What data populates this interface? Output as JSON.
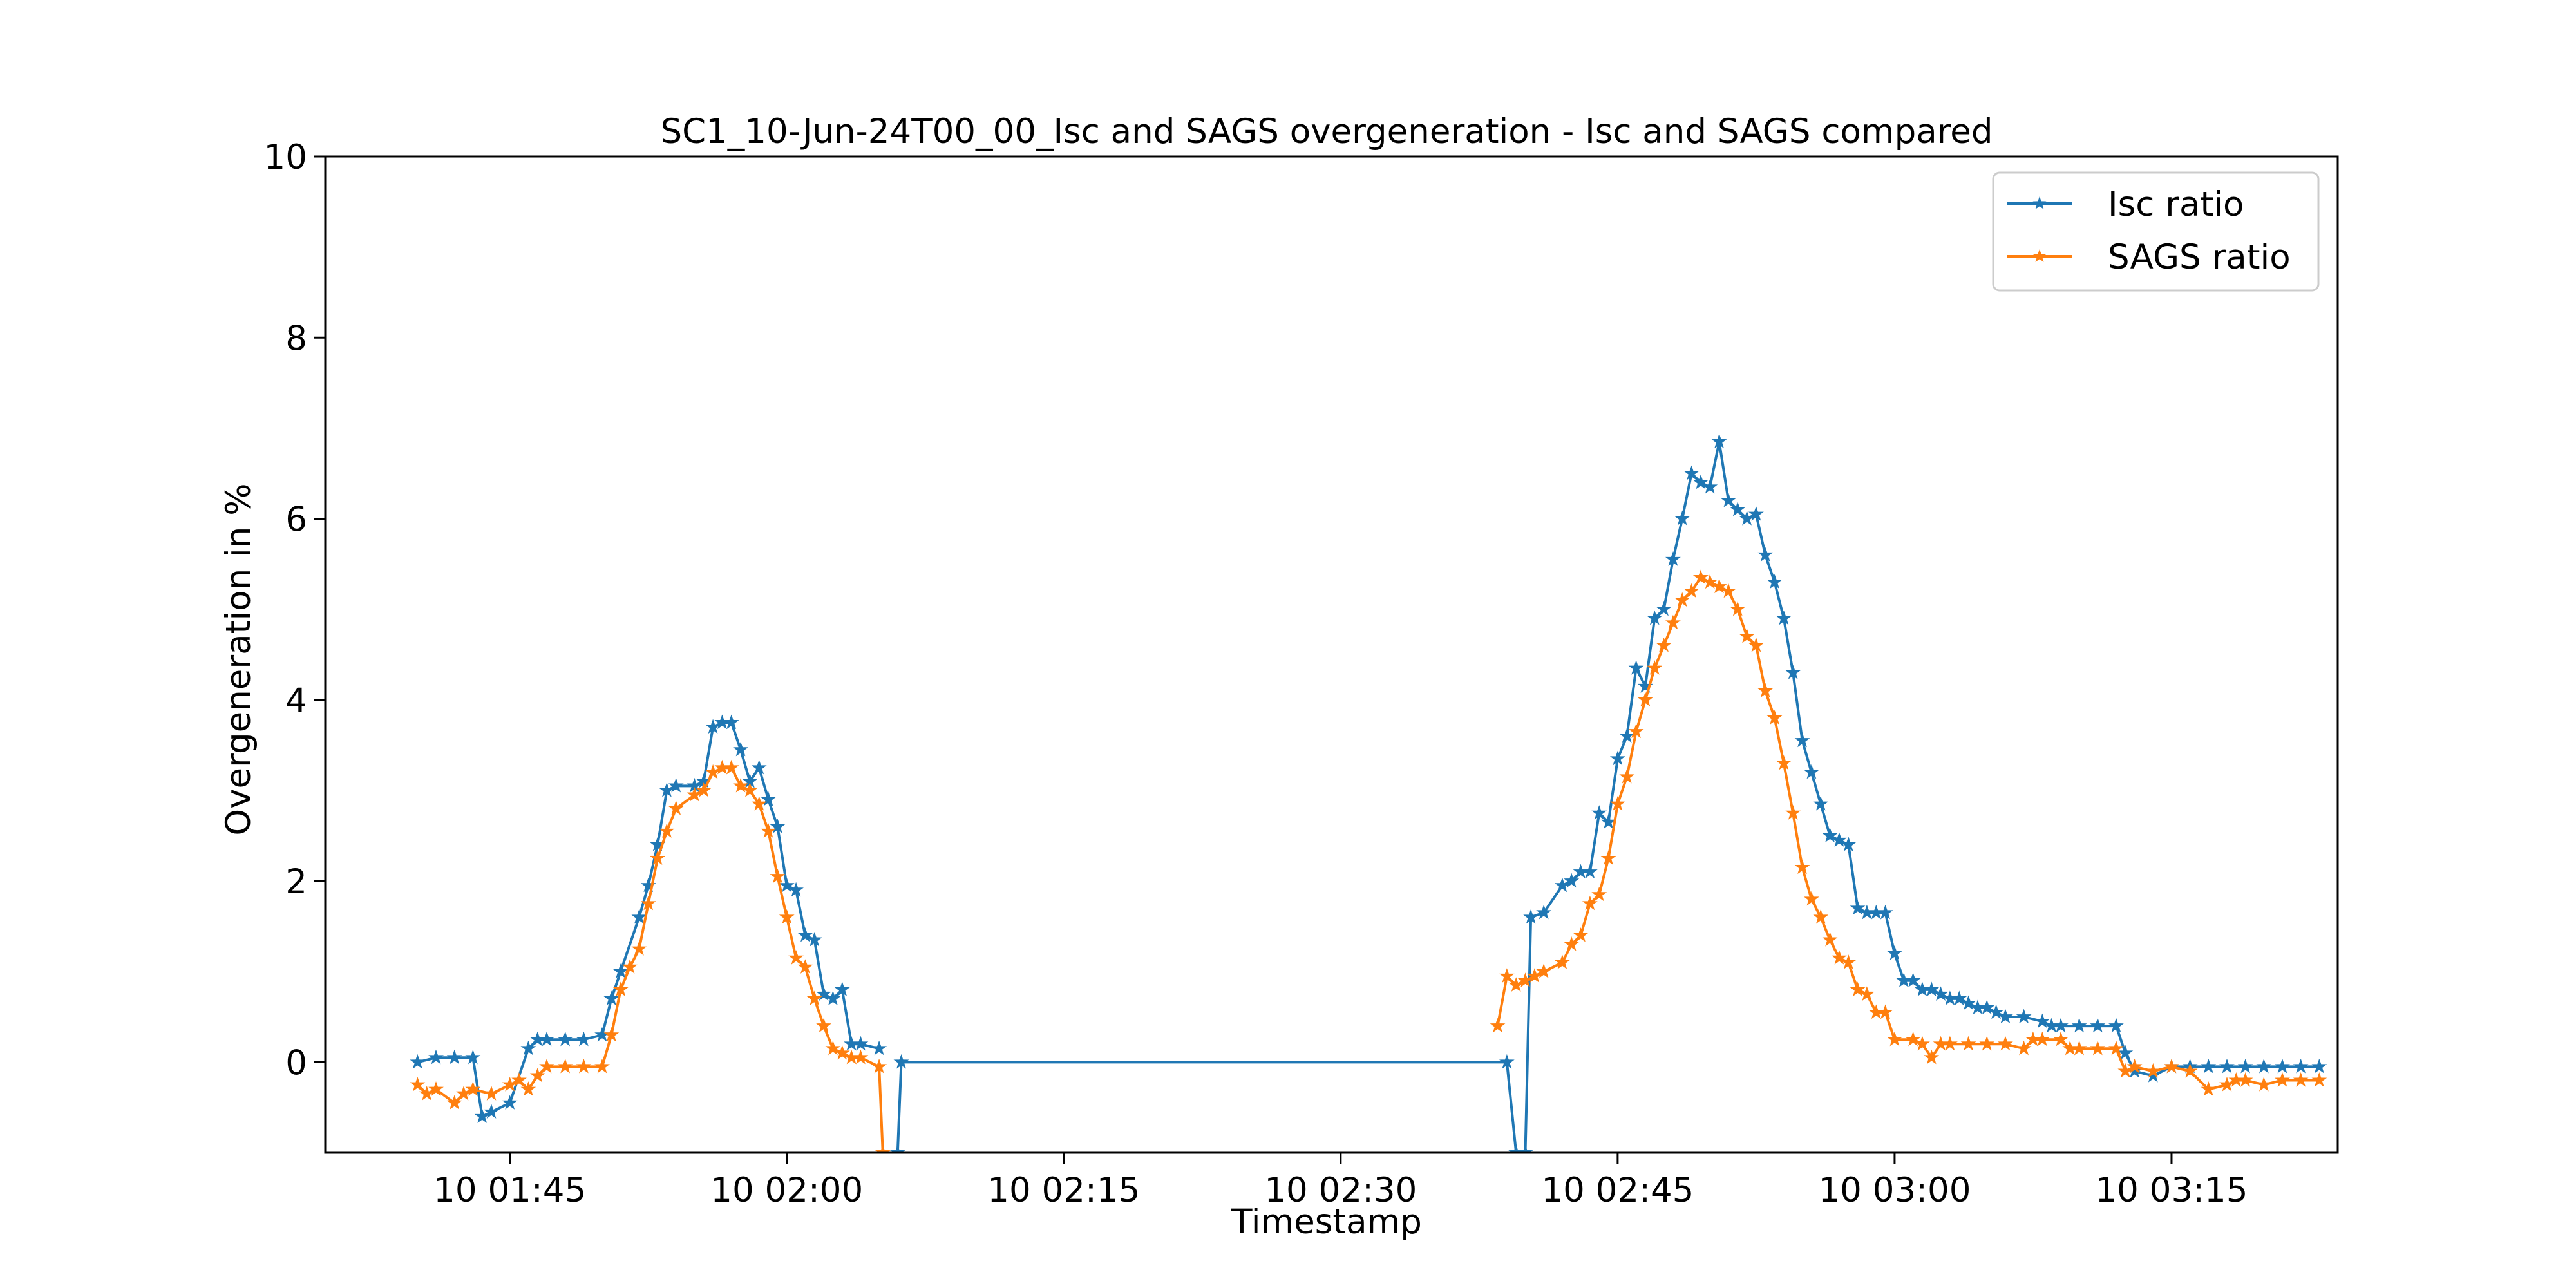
{
  "chart_data": {
    "type": "line",
    "title": "SC1_10-Jun-24T00_00_Isc and SAGS overgeneration - Isc and SAGS compared",
    "xlabel": "Timestamp",
    "ylabel": "Overgeneration in %",
    "xlim": [
      "10 01:35",
      "10 03:24"
    ],
    "ylim": [
      -1,
      10
    ],
    "x_ticks": [
      "10 01:45",
      "10 02:00",
      "10 02:15",
      "10 02:30",
      "10 02:45",
      "10 03:00",
      "10 03:15"
    ],
    "y_ticks": [
      0,
      2,
      4,
      6,
      8,
      10
    ],
    "legend_position": "top-right",
    "grid": false,
    "marker": "star",
    "series": [
      {
        "name": "Isc ratio",
        "color": "#1f77b4",
        "points": [
          [
            "10 01:40",
            0.0
          ],
          [
            "10 01:41",
            0.05
          ],
          [
            "10 01:42",
            0.05
          ],
          [
            "10 01:43",
            0.05
          ],
          [
            "10 01:43.5",
            -0.6
          ],
          [
            "10 01:44",
            -0.55
          ],
          [
            "10 01:45",
            -0.45
          ],
          [
            "10 01:46",
            0.15
          ],
          [
            "10 01:46.5",
            0.25
          ],
          [
            "10 01:47",
            0.25
          ],
          [
            "10 01:48",
            0.25
          ],
          [
            "10 01:49",
            0.25
          ],
          [
            "10 01:50",
            0.3
          ],
          [
            "10 01:50.5",
            0.7
          ],
          [
            "10 01:51",
            1.0
          ],
          [
            "10 01:52",
            1.6
          ],
          [
            "10 01:52.5",
            1.95
          ],
          [
            "10 01:53",
            2.4
          ],
          [
            "10 01:53.5",
            3.0
          ],
          [
            "10 01:54",
            3.05
          ],
          [
            "10 01:55",
            3.05
          ],
          [
            "10 01:55.5",
            3.1
          ],
          [
            "10 01:56",
            3.7
          ],
          [
            "10 01:56.5",
            3.75
          ],
          [
            "10 01:57",
            3.75
          ],
          [
            "10 01:57.5",
            3.45
          ],
          [
            "10 01:58",
            3.1
          ],
          [
            "10 01:58.5",
            3.25
          ],
          [
            "10 01:59",
            2.9
          ],
          [
            "10 01:59.5",
            2.6
          ],
          [
            "10 02:00",
            1.95
          ],
          [
            "10 02:00.5",
            1.9
          ],
          [
            "10 02:01",
            1.4
          ],
          [
            "10 02:01.5",
            1.35
          ],
          [
            "10 02:02",
            0.75
          ],
          [
            "10 02:02.5",
            0.7
          ],
          [
            "10 02:03",
            0.8
          ],
          [
            "10 02:03.5",
            0.2
          ],
          [
            "10 02:04",
            0.2
          ],
          [
            "10 02:05",
            0.15
          ],
          [
            "10 02:05.5",
            null
          ],
          [
            "10 02:06",
            -1.0
          ],
          [
            "10 02:06.2",
            0.0
          ],
          [
            "10 02:39",
            0.0
          ],
          [
            "10 02:39.5",
            -1.0
          ],
          [
            "10 02:40",
            -1.0
          ],
          [
            "10 02:40.3",
            1.6
          ],
          [
            "10 02:41",
            1.65
          ],
          [
            "10 02:42",
            1.95
          ],
          [
            "10 02:42.5",
            2.0
          ],
          [
            "10 02:43",
            2.1
          ],
          [
            "10 02:43.5",
            2.1
          ],
          [
            "10 02:44",
            2.75
          ],
          [
            "10 02:44.5",
            2.65
          ],
          [
            "10 02:45",
            3.35
          ],
          [
            "10 02:45.5",
            3.6
          ],
          [
            "10 02:46",
            4.35
          ],
          [
            "10 02:46.5",
            4.15
          ],
          [
            "10 02:47",
            4.9
          ],
          [
            "10 02:47.5",
            5.0
          ],
          [
            "10 02:48",
            5.55
          ],
          [
            "10 02:48.5",
            6.0
          ],
          [
            "10 02:49",
            6.5
          ],
          [
            "10 02:49.5",
            6.4
          ],
          [
            "10 02:50",
            6.35
          ],
          [
            "10 02:50.5",
            6.85
          ],
          [
            "10 02:51",
            6.2
          ],
          [
            "10 02:51.5",
            6.1
          ],
          [
            "10 02:52",
            6.0
          ],
          [
            "10 02:52.5",
            6.05
          ],
          [
            "10 02:53",
            5.6
          ],
          [
            "10 02:53.5",
            5.3
          ],
          [
            "10 02:54",
            4.9
          ],
          [
            "10 02:54.5",
            4.3
          ],
          [
            "10 02:55",
            3.55
          ],
          [
            "10 02:55.5",
            3.2
          ],
          [
            "10 02:56",
            2.85
          ],
          [
            "10 02:56.5",
            2.5
          ],
          [
            "10 02:57",
            2.45
          ],
          [
            "10 02:57.5",
            2.4
          ],
          [
            "10 02:58",
            1.7
          ],
          [
            "10 02:58.5",
            1.65
          ],
          [
            "10 02:59",
            1.65
          ],
          [
            "10 02:59.5",
            1.65
          ],
          [
            "10 03:00",
            1.2
          ],
          [
            "10 03:00.5",
            0.9
          ],
          [
            "10 03:01",
            0.9
          ],
          [
            "10 03:01.5",
            0.8
          ],
          [
            "10 03:02",
            0.8
          ],
          [
            "10 03:02.5",
            0.75
          ],
          [
            "10 03:03",
            0.7
          ],
          [
            "10 03:03.5",
            0.7
          ],
          [
            "10 03:04",
            0.65
          ],
          [
            "10 03:04.5",
            0.6
          ],
          [
            "10 03:05",
            0.6
          ],
          [
            "10 03:05.5",
            0.55
          ],
          [
            "10 03:06",
            0.5
          ],
          [
            "10 03:07",
            0.5
          ],
          [
            "10 03:08",
            0.45
          ],
          [
            "10 03:08.5",
            0.4
          ],
          [
            "10 03:09",
            0.4
          ],
          [
            "10 03:10",
            0.4
          ],
          [
            "10 03:11",
            0.4
          ],
          [
            "10 03:12",
            0.4
          ],
          [
            "10 03:12.5",
            0.1
          ],
          [
            "10 03:13",
            -0.1
          ],
          [
            "10 03:14",
            -0.15
          ],
          [
            "10 03:15",
            -0.05
          ],
          [
            "10 03:16",
            -0.05
          ],
          [
            "10 03:17",
            -0.05
          ],
          [
            "10 03:18",
            -0.05
          ],
          [
            "10 03:19",
            -0.05
          ],
          [
            "10 03:20",
            -0.05
          ],
          [
            "10 03:21",
            -0.05
          ],
          [
            "10 03:22",
            -0.05
          ],
          [
            "10 03:23",
            -0.05
          ]
        ]
      },
      {
        "name": "SAGS ratio",
        "color": "#ff7f0e",
        "points": [
          [
            "10 01:40",
            -0.25
          ],
          [
            "10 01:40.5",
            -0.35
          ],
          [
            "10 01:41",
            -0.3
          ],
          [
            "10 01:42",
            -0.45
          ],
          [
            "10 01:42.5",
            -0.35
          ],
          [
            "10 01:43",
            -0.3
          ],
          [
            "10 01:44",
            -0.35
          ],
          [
            "10 01:45",
            -0.25
          ],
          [
            "10 01:45.5",
            -0.2
          ],
          [
            "10 01:46",
            -0.3
          ],
          [
            "10 01:46.5",
            -0.15
          ],
          [
            "10 01:47",
            -0.05
          ],
          [
            "10 01:48",
            -0.05
          ],
          [
            "10 01:49",
            -0.05
          ],
          [
            "10 01:50",
            -0.05
          ],
          [
            "10 01:50.5",
            0.3
          ],
          [
            "10 01:51",
            0.8
          ],
          [
            "10 01:51.5",
            1.05
          ],
          [
            "10 01:52",
            1.25
          ],
          [
            "10 01:52.5",
            1.75
          ],
          [
            "10 01:53",
            2.25
          ],
          [
            "10 01:53.5",
            2.55
          ],
          [
            "10 01:54",
            2.8
          ],
          [
            "10 01:55",
            2.95
          ],
          [
            "10 01:55.5",
            3.0
          ],
          [
            "10 01:56",
            3.2
          ],
          [
            "10 01:56.5",
            3.25
          ],
          [
            "10 01:57",
            3.25
          ],
          [
            "10 01:57.5",
            3.05
          ],
          [
            "10 01:58",
            3.0
          ],
          [
            "10 01:58.5",
            2.85
          ],
          [
            "10 01:59",
            2.55
          ],
          [
            "10 01:59.5",
            2.05
          ],
          [
            "10 02:00",
            1.6
          ],
          [
            "10 02:00.5",
            1.15
          ],
          [
            "10 02:01",
            1.05
          ],
          [
            "10 02:01.5",
            0.7
          ],
          [
            "10 02:02",
            0.4
          ],
          [
            "10 02:02.5",
            0.15
          ],
          [
            "10 02:03",
            0.1
          ],
          [
            "10 02:03.5",
            0.05
          ],
          [
            "10 02:04",
            0.05
          ],
          [
            "10 02:05",
            -0.05
          ],
          [
            "10 02:05.2",
            -1.0
          ],
          [
            "10 02:05.5",
            null
          ],
          [
            "10 02:38.5",
            0.4
          ],
          [
            "10 02:39",
            0.95
          ],
          [
            "10 02:39.5",
            0.85
          ],
          [
            "10 02:40",
            0.9
          ],
          [
            "10 02:40.5",
            0.95
          ],
          [
            "10 02:41",
            1.0
          ],
          [
            "10 02:42",
            1.1
          ],
          [
            "10 02:42.5",
            1.3
          ],
          [
            "10 02:43",
            1.4
          ],
          [
            "10 02:43.5",
            1.75
          ],
          [
            "10 02:44",
            1.85
          ],
          [
            "10 02:44.5",
            2.25
          ],
          [
            "10 02:45",
            2.85
          ],
          [
            "10 02:45.5",
            3.15
          ],
          [
            "10 02:46",
            3.65
          ],
          [
            "10 02:46.5",
            4.0
          ],
          [
            "10 02:47",
            4.35
          ],
          [
            "10 02:47.5",
            4.6
          ],
          [
            "10 02:48",
            4.85
          ],
          [
            "10 02:48.5",
            5.1
          ],
          [
            "10 02:49",
            5.2
          ],
          [
            "10 02:49.5",
            5.35
          ],
          [
            "10 02:50",
            5.3
          ],
          [
            "10 02:50.5",
            5.25
          ],
          [
            "10 02:51",
            5.2
          ],
          [
            "10 02:51.5",
            5.0
          ],
          [
            "10 02:52",
            4.7
          ],
          [
            "10 02:52.5",
            4.6
          ],
          [
            "10 02:53",
            4.1
          ],
          [
            "10 02:53.5",
            3.8
          ],
          [
            "10 02:54",
            3.3
          ],
          [
            "10 02:54.5",
            2.75
          ],
          [
            "10 02:55",
            2.15
          ],
          [
            "10 02:55.5",
            1.8
          ],
          [
            "10 02:56",
            1.6
          ],
          [
            "10 02:56.5",
            1.35
          ],
          [
            "10 02:57",
            1.15
          ],
          [
            "10 02:57.5",
            1.1
          ],
          [
            "10 02:58",
            0.8
          ],
          [
            "10 02:58.5",
            0.75
          ],
          [
            "10 02:59",
            0.55
          ],
          [
            "10 02:59.5",
            0.55
          ],
          [
            "10 03:00",
            0.25
          ],
          [
            "10 03:01",
            0.25
          ],
          [
            "10 03:01.5",
            0.2
          ],
          [
            "10 03:02",
            0.05
          ],
          [
            "10 03:02.5",
            0.2
          ],
          [
            "10 03:03",
            0.2
          ],
          [
            "10 03:04",
            0.2
          ],
          [
            "10 03:05",
            0.2
          ],
          [
            "10 03:06",
            0.2
          ],
          [
            "10 03:07",
            0.15
          ],
          [
            "10 03:07.5",
            0.25
          ],
          [
            "10 03:08",
            0.25
          ],
          [
            "10 03:09",
            0.25
          ],
          [
            "10 03:09.5",
            0.15
          ],
          [
            "10 03:10",
            0.15
          ],
          [
            "10 03:11",
            0.15
          ],
          [
            "10 03:12",
            0.15
          ],
          [
            "10 03:12.5",
            -0.1
          ],
          [
            "10 03:13",
            -0.05
          ],
          [
            "10 03:14",
            -0.1
          ],
          [
            "10 03:15",
            -0.05
          ],
          [
            "10 03:16",
            -0.1
          ],
          [
            "10 03:17",
            -0.3
          ],
          [
            "10 03:18",
            -0.25
          ],
          [
            "10 03:18.5",
            -0.2
          ],
          [
            "10 03:19",
            -0.2
          ],
          [
            "10 03:20",
            -0.25
          ],
          [
            "10 03:21",
            -0.2
          ],
          [
            "10 03:22",
            -0.2
          ],
          [
            "10 03:23",
            -0.2
          ]
        ]
      }
    ]
  }
}
